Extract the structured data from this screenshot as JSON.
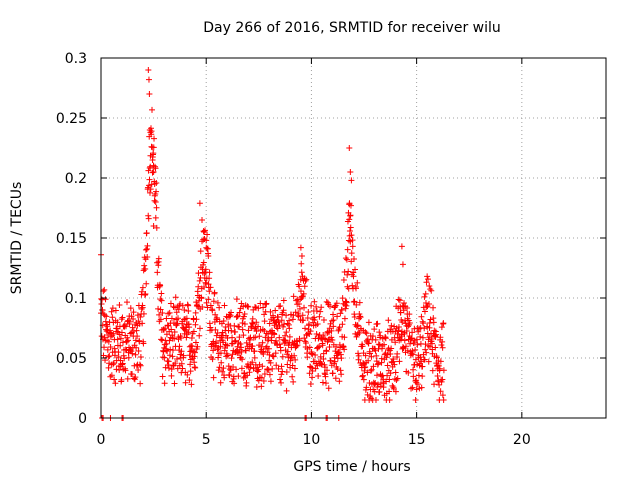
{
  "chart_data": {
    "type": "scatter",
    "title": "Day 266 of 2016, SRMTID for receiver wilu",
    "xlabel": "GPS time / hours",
    "ylabel": "SRMTID / TECUs",
    "xlim": [
      0,
      24
    ],
    "ylim": [
      0,
      0.3
    ],
    "xticks": [
      0,
      5,
      10,
      15,
      20
    ],
    "yticks": [
      0,
      0.05,
      0.1,
      0.15,
      0.2,
      0.25,
      0.3
    ],
    "ytick_labels": [
      "0",
      "0.05",
      "0.1",
      "0.15",
      "0.2",
      "0.25",
      "0.3"
    ],
    "grid": true,
    "marker": "+",
    "color": "#ff0000",
    "series": [
      {
        "name": "SRMTID",
        "x_range": [
          0,
          16.3
        ],
        "outliers": [
          {
            "x": 0.0,
            "y": 0.136
          },
          {
            "x": 2.25,
            "y": 0.29
          },
          {
            "x": 2.28,
            "y": 0.282
          },
          {
            "x": 2.3,
            "y": 0.27
          },
          {
            "x": 2.32,
            "y": 0.24
          },
          {
            "x": 2.35,
            "y": 0.238
          },
          {
            "x": 2.4,
            "y": 0.226
          },
          {
            "x": 2.45,
            "y": 0.215
          },
          {
            "x": 2.5,
            "y": 0.205
          },
          {
            "x": 2.55,
            "y": 0.195
          },
          {
            "x": 2.6,
            "y": 0.18
          },
          {
            "x": 2.5,
            "y": 0.16
          },
          {
            "x": 4.7,
            "y": 0.179
          },
          {
            "x": 4.8,
            "y": 0.165
          },
          {
            "x": 4.9,
            "y": 0.155
          },
          {
            "x": 5.0,
            "y": 0.148
          },
          {
            "x": 5.1,
            "y": 0.135
          },
          {
            "x": 9.5,
            "y": 0.142
          },
          {
            "x": 9.55,
            "y": 0.135
          },
          {
            "x": 11.8,
            "y": 0.225
          },
          {
            "x": 11.85,
            "y": 0.205
          },
          {
            "x": 11.9,
            "y": 0.198
          },
          {
            "x": 11.8,
            "y": 0.178
          },
          {
            "x": 11.85,
            "y": 0.147
          },
          {
            "x": 14.3,
            "y": 0.143
          },
          {
            "x": 14.35,
            "y": 0.128
          },
          {
            "x": 15.5,
            "y": 0.118
          },
          {
            "x": 15.6,
            "y": 0.11
          }
        ],
        "baseline_x_hours": [
          0.05,
          0.1,
          0.45,
          1.0,
          1.05,
          9.7,
          9.75,
          10.7,
          10.75,
          11.3
        ]
      }
    ]
  }
}
